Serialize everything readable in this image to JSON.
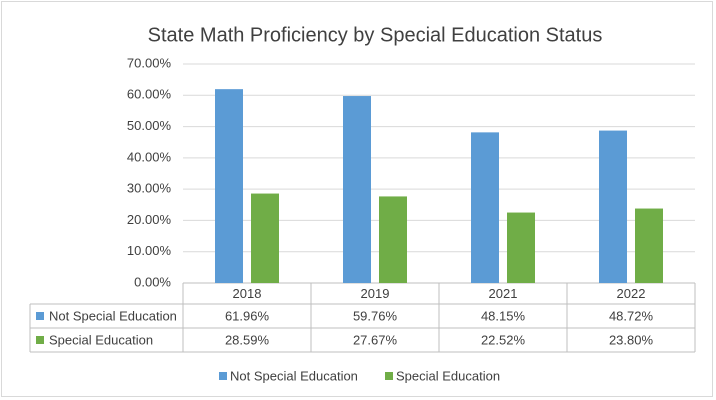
{
  "chart_data": {
    "type": "bar",
    "title": "State Math Proficiency by Special Education Status",
    "categories": [
      "2018",
      "2019",
      "2021",
      "2022"
    ],
    "series": [
      {
        "name": "Not Special Education",
        "color": "#5b9bd5",
        "values": [
          61.96,
          59.76,
          48.15,
          48.72
        ],
        "value_labels": [
          "61.96%",
          "59.76%",
          "48.15%",
          "48.72%"
        ]
      },
      {
        "name": "Special Education",
        "color": "#70ad47",
        "values": [
          28.59,
          27.67,
          22.52,
          23.8
        ],
        "value_labels": [
          "28.59%",
          "27.67%",
          "22.52%",
          "23.80%"
        ]
      }
    ],
    "ylim": [
      0,
      70
    ],
    "yticks": [
      {
        "value": 0,
        "label": "0.00%"
      },
      {
        "value": 10,
        "label": "10.00%"
      },
      {
        "value": 20,
        "label": "20.00%"
      },
      {
        "value": 30,
        "label": "30.00%"
      },
      {
        "value": 40,
        "label": "40.00%"
      },
      {
        "value": 50,
        "label": "50.00%"
      },
      {
        "value": 60,
        "label": "60.00%"
      },
      {
        "value": 70,
        "label": "70.00%"
      }
    ],
    "grid": true,
    "legend": "bottom"
  }
}
